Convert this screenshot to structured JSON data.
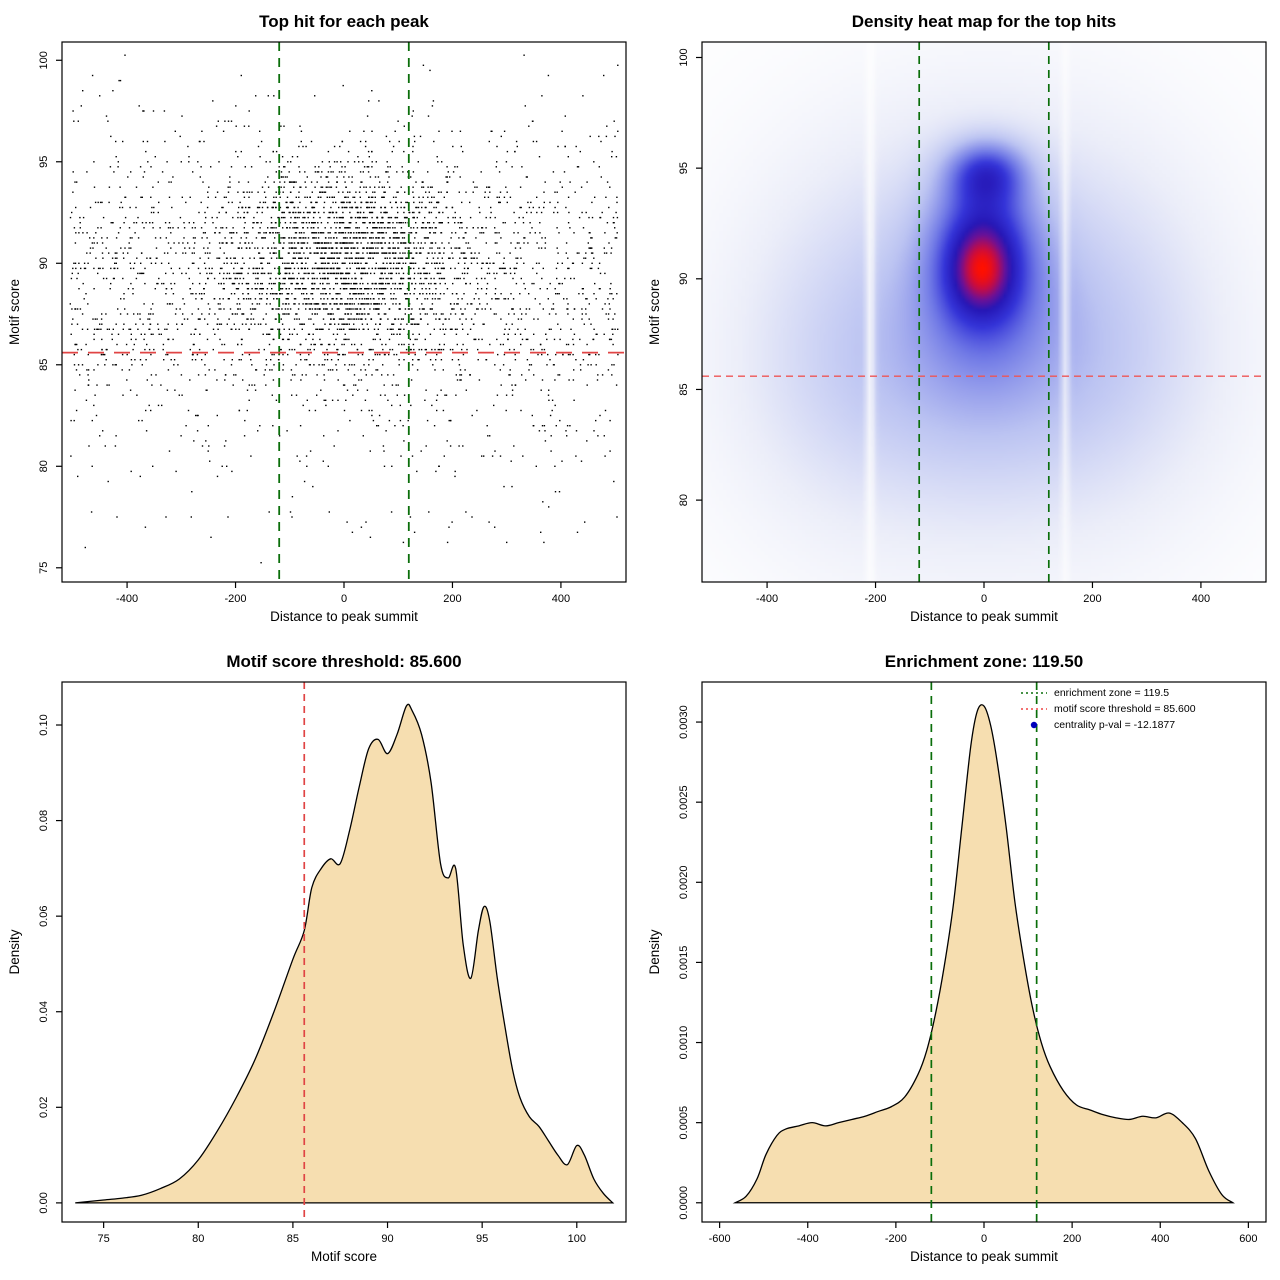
{
  "page": {
    "background": "#ffffff"
  },
  "colors": {
    "red_dashed": "#e04444",
    "green_dashed": "#0a6e0a",
    "area_fill": "#f6deb0",
    "point_color": "#000000",
    "legend_dot": "#0000bb"
  },
  "chart_data": [
    {
      "type": "scatter",
      "title": "Top hit for each peak",
      "xlabel": "Distance to peak summit",
      "ylabel": "Motif score",
      "xlim": [
        -520,
        520
      ],
      "ylim": [
        74.3,
        100.9
      ],
      "xticks": [
        -400,
        -200,
        0,
        200,
        400
      ],
      "xtick_labels": [
        "-400",
        "-200",
        "0",
        "200",
        "400"
      ],
      "yticks": [
        75,
        80,
        85,
        90,
        95,
        100
      ],
      "ytick_labels": [
        "75",
        "80",
        "85",
        "90",
        "95",
        "100"
      ],
      "points": {
        "n": 4300,
        "seed": 42,
        "cluster_frac": 0.5,
        "cluster_x_sd": 115,
        "cluster_y_mean": 90.4,
        "cluster_y_sd": 2.3,
        "bg_y_mean": 89.0,
        "bg_y_sd": 3.9,
        "low_tail_frac": 0.06,
        "x_min": -505,
        "x_max": 505,
        "y_min": 74.8,
        "y_max": 100.25,
        "quantize": 0.25
      },
      "point_color": "#000000",
      "point_size": 1.4,
      "vlines": [
        {
          "x": -119.5,
          "color": "#0a6e0a",
          "dash": "9,7",
          "width": 1.8
        },
        {
          "x": 119.5,
          "color": "#0a6e0a",
          "dash": "9,7",
          "width": 1.8
        }
      ],
      "hlines": [
        {
          "y": 85.6,
          "color": "#e04444",
          "dash": "16,10",
          "width": 1.8
        }
      ]
    },
    {
      "type": "heatmap",
      "title": "Density heat map for the top hits",
      "xlabel": "Distance to peak summit",
      "ylabel": "Motif score",
      "xlim": [
        -520,
        520
      ],
      "ylim": [
        76.3,
        100.7
      ],
      "xticks": [
        -400,
        -200,
        0,
        200,
        400
      ],
      "xtick_labels": [
        "-400",
        "-200",
        "0",
        "200",
        "400"
      ],
      "yticks": [
        80,
        85,
        90,
        95,
        100
      ],
      "ytick_labels": [
        "80",
        "85",
        "90",
        "95",
        "100"
      ],
      "kernels": [
        {
          "x": 0,
          "y": 87,
          "sx": 300,
          "sy": 7,
          "a": 0.3
        },
        {
          "x": 0,
          "y": 89,
          "sx": 160,
          "sy": 5,
          "a": 0.35
        },
        {
          "x": 0,
          "y": 90.2,
          "sx": 75,
          "sy": 2.6,
          "a": 0.85
        },
        {
          "x": -5,
          "y": 90.3,
          "sx": 45,
          "sy": 1.4,
          "a": 1.0
        },
        {
          "x": 5,
          "y": 94.8,
          "sx": 50,
          "sy": 1.0,
          "a": 1.1
        },
        {
          "x": 0,
          "y": 92.6,
          "sx": 60,
          "sy": 1.6,
          "a": 0.55
        },
        {
          "x": 0,
          "y": 85.5,
          "sx": 220,
          "sy": 3.5,
          "a": 0.22
        },
        {
          "x": 260,
          "y": 88,
          "sx": 120,
          "sy": 5,
          "a": 0.15
        },
        {
          "x": -280,
          "y": 87,
          "sx": 120,
          "sy": 5,
          "a": 0.15
        }
      ],
      "white_gaps": [
        {
          "x": -210,
          "w": 9,
          "s": 0.75
        },
        {
          "x": 150,
          "w": 8,
          "s": 0.6
        }
      ],
      "colormap": [
        [
          0,
          "#ffffff"
        ],
        [
          0.1,
          "#eceef9"
        ],
        [
          0.28,
          "#bcc4f2"
        ],
        [
          0.48,
          "#7079e6"
        ],
        [
          0.63,
          "#3434d8"
        ],
        [
          0.76,
          "#2617b6"
        ],
        [
          0.85,
          "#6d1196"
        ],
        [
          0.93,
          "#c40c45"
        ],
        [
          1,
          "#ff1000"
        ]
      ],
      "gamma": 0.85,
      "vlines": [
        {
          "x": -119.5,
          "color": "#0a6e0a",
          "dash": "8,6",
          "width": 1.7
        },
        {
          "x": 119.5,
          "color": "#0a6e0a",
          "dash": "8,6",
          "width": 1.7
        }
      ],
      "hlines": [
        {
          "y": 85.6,
          "color": "#ee5555",
          "dash": "7,5",
          "width": 1.4
        }
      ]
    },
    {
      "type": "area",
      "title": "Motif score threshold: 85.600",
      "xlabel": "Motif score",
      "ylabel": "Density",
      "xlim": [
        72.8,
        102.6
      ],
      "ylim": [
        -0.004,
        0.109
      ],
      "xticks": [
        75,
        80,
        85,
        90,
        95,
        100
      ],
      "xtick_labels": [
        "75",
        "80",
        "85",
        "90",
        "95",
        "100"
      ],
      "yticks": [
        0,
        0.02,
        0.04,
        0.06,
        0.08,
        0.1
      ],
      "ytick_labels": [
        "0.00",
        "0.02",
        "0.04",
        "0.06",
        "0.08",
        "0.10"
      ],
      "fill": "#f6deb0",
      "stroke": "#000000",
      "x": [
        73.5,
        75,
        76,
        77,
        78,
        79,
        80,
        81,
        82,
        83,
        84,
        85,
        85.6,
        86,
        86.5,
        87,
        87.5,
        88,
        88.5,
        89,
        89.5,
        90,
        90.5,
        91,
        91.3,
        91.8,
        92.3,
        92.8,
        93.2,
        93.6,
        94,
        94.4,
        94.8,
        95.1,
        95.4,
        95.8,
        96.2,
        96.6,
        97,
        97.5,
        98,
        98.5,
        99,
        99.5,
        100,
        100.4,
        100.9,
        101.4,
        101.9
      ],
      "y": [
        0,
        0.0006,
        0.001,
        0.0016,
        0.003,
        0.005,
        0.009,
        0.015,
        0.022,
        0.03,
        0.04,
        0.051,
        0.057,
        0.066,
        0.07,
        0.072,
        0.071,
        0.078,
        0.087,
        0.095,
        0.097,
        0.094,
        0.098,
        0.104,
        0.103,
        0.098,
        0.088,
        0.071,
        0.068,
        0.07,
        0.054,
        0.047,
        0.057,
        0.062,
        0.059,
        0.047,
        0.037,
        0.028,
        0.022,
        0.018,
        0.016,
        0.013,
        0.01,
        0.008,
        0.012,
        0.01,
        0.005,
        0.002,
        0
      ],
      "vlines": [
        {
          "x": 85.6,
          "color": "#e04444",
          "dash": "7,5",
          "width": 1.7
        }
      ]
    },
    {
      "type": "area",
      "title": "Enrichment zone: 119.50",
      "xlabel": "Distance to peak summit",
      "ylabel": "Density",
      "xlim": [
        -640,
        640
      ],
      "ylim": [
        -0.00012,
        0.00325
      ],
      "xticks": [
        -600,
        -400,
        -200,
        0,
        200,
        400,
        600
      ],
      "xtick_labels": [
        "-600",
        "-400",
        "-200",
        "0",
        "200",
        "400",
        "600"
      ],
      "yticks": [
        0,
        0.0005,
        0.001,
        0.0015,
        0.002,
        0.0025,
        0.003
      ],
      "ytick_labels": [
        "0.0000",
        "0.0005",
        "0.0010",
        "0.0015",
        "0.0020",
        "0.0025",
        "0.0030"
      ],
      "fill": "#f6deb0",
      "stroke": "#000000",
      "x": [
        -565,
        -540,
        -515,
        -495,
        -470,
        -450,
        -420,
        -390,
        -360,
        -330,
        -300,
        -270,
        -240,
        -210,
        -180,
        -150,
        -130,
        -110,
        -90,
        -70,
        -50,
        -30,
        -15,
        0,
        15,
        30,
        50,
        70,
        90,
        110,
        130,
        150,
        180,
        210,
        240,
        270,
        300,
        330,
        360,
        390,
        420,
        450,
        480,
        510,
        540,
        565
      ],
      "y": [
        0,
        4e-05,
        0.00015,
        0.0003,
        0.00042,
        0.00046,
        0.00048,
        0.0005,
        0.00048,
        0.0005,
        0.00052,
        0.00054,
        0.00057,
        0.0006,
        0.00066,
        0.0008,
        0.00095,
        0.00118,
        0.00148,
        0.00185,
        0.00235,
        0.00285,
        0.00307,
        0.0031,
        0.00298,
        0.00275,
        0.00235,
        0.00188,
        0.00152,
        0.00122,
        0.001,
        0.00085,
        0.0007,
        0.00061,
        0.00058,
        0.00055,
        0.00053,
        0.00052,
        0.00054,
        0.00053,
        0.00056,
        0.0005,
        0.0004,
        0.0002,
        5e-05,
        0
      ],
      "vlines": [
        {
          "x": -119.5,
          "color": "#0a6e0a",
          "dash": "8,6",
          "width": 1.7
        },
        {
          "x": 119.5,
          "color": "#0a6e0a",
          "dash": "8,6",
          "width": 1.7
        }
      ],
      "legend": {
        "items": [
          {
            "type": "line",
            "color": "#0a6e0a",
            "dash": "2,3",
            "label": "enrichment zone = 119.5"
          },
          {
            "type": "line",
            "color": "#ee4444",
            "dash": "2,3",
            "label": "motif score threshold = 85.600"
          },
          {
            "type": "point",
            "color": "#0000bb",
            "label": "centrality p-val = -12.1877"
          }
        ]
      }
    }
  ]
}
